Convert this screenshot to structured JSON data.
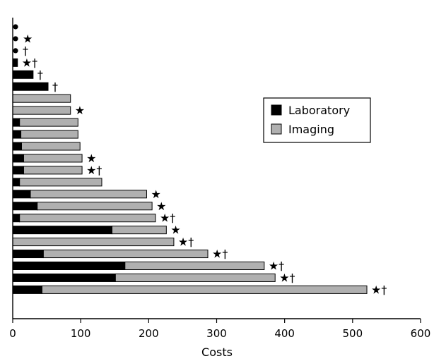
{
  "chart_data": {
    "type": "bar",
    "orientation": "horizontal",
    "stacked": true,
    "xlabel": "Costs",
    "ylabel": "",
    "xlim": [
      0,
      600
    ],
    "xticks": [
      0,
      100,
      200,
      300,
      400,
      500,
      600
    ],
    "grid": false,
    "legend_position": "top-right",
    "series": [
      {
        "name": "Laboratory",
        "color": "#000000"
      },
      {
        "name": "Imaging",
        "color": "#b0b0b0"
      }
    ],
    "rows": [
      {
        "laboratory": 0,
        "imaging": 0,
        "dot": true,
        "annotation": ""
      },
      {
        "laboratory": 0,
        "imaging": 0,
        "dot": true,
        "annotation": "★"
      },
      {
        "laboratory": 0,
        "imaging": 0,
        "dot": true,
        "annotation": "†"
      },
      {
        "laboratory": 7,
        "imaging": 0,
        "dot": false,
        "annotation": "★†"
      },
      {
        "laboratory": 30,
        "imaging": 0,
        "dot": false,
        "annotation": "†"
      },
      {
        "laboratory": 52,
        "imaging": 0,
        "dot": false,
        "annotation": "†"
      },
      {
        "laboratory": 0,
        "imaging": 85,
        "dot": false,
        "annotation": ""
      },
      {
        "laboratory": 0,
        "imaging": 85,
        "dot": false,
        "annotation": "★"
      },
      {
        "laboratory": 10,
        "imaging": 86,
        "dot": false,
        "annotation": ""
      },
      {
        "laboratory": 12,
        "imaging": 84,
        "dot": false,
        "annotation": ""
      },
      {
        "laboratory": 13,
        "imaging": 86,
        "dot": false,
        "annotation": ""
      },
      {
        "laboratory": 16,
        "imaging": 86,
        "dot": false,
        "annotation": "★"
      },
      {
        "laboratory": 16,
        "imaging": 86,
        "dot": false,
        "annotation": "★†"
      },
      {
        "laboratory": 10,
        "imaging": 121,
        "dot": false,
        "annotation": ""
      },
      {
        "laboratory": 26,
        "imaging": 171,
        "dot": false,
        "annotation": "★"
      },
      {
        "laboratory": 36,
        "imaging": 169,
        "dot": false,
        "annotation": "★"
      },
      {
        "laboratory": 10,
        "imaging": 200,
        "dot": false,
        "annotation": "★†"
      },
      {
        "laboratory": 146,
        "imaging": 80,
        "dot": false,
        "annotation": "★"
      },
      {
        "laboratory": 0,
        "imaging": 237,
        "dot": false,
        "annotation": "★†"
      },
      {
        "laboratory": 45,
        "imaging": 242,
        "dot": false,
        "annotation": "★†"
      },
      {
        "laboratory": 165,
        "imaging": 205,
        "dot": false,
        "annotation": "★†"
      },
      {
        "laboratory": 151,
        "imaging": 235,
        "dot": false,
        "annotation": "★†"
      },
      {
        "laboratory": 43,
        "imaging": 478,
        "dot": false,
        "annotation": "★†"
      }
    ]
  }
}
